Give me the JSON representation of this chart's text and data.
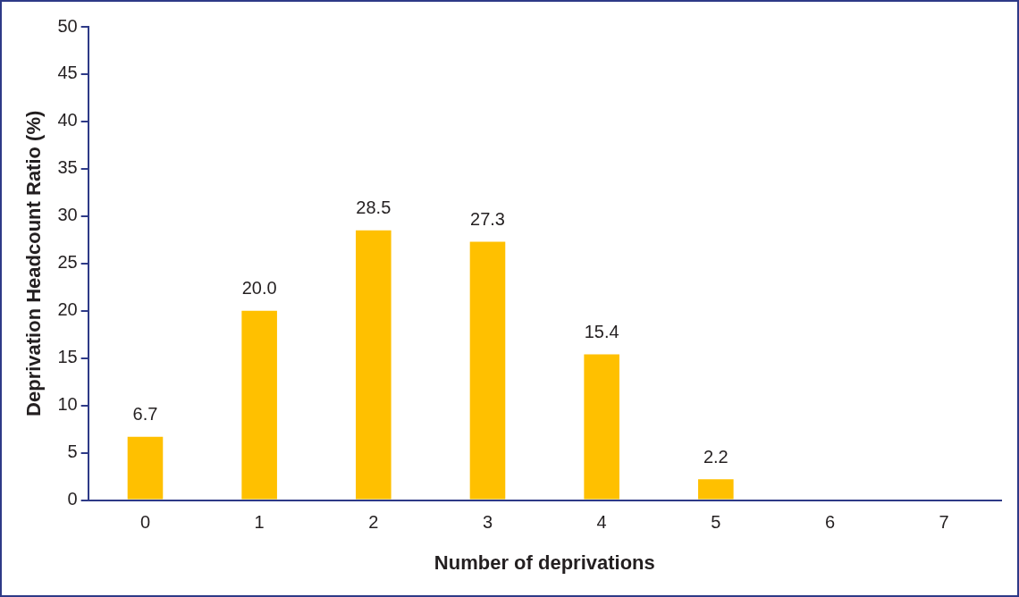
{
  "chart_data": {
    "type": "bar",
    "xlabel": "Number of deprivations",
    "ylabel": "Deprivation Headcount Ratio (%)",
    "categories": [
      "0",
      "1",
      "2",
      "3",
      "4",
      "5",
      "6",
      "7"
    ],
    "values": [
      6.7,
      20.0,
      28.5,
      27.3,
      15.4,
      2.2,
      null,
      null
    ],
    "value_labels": [
      "6.7",
      "20.0",
      "28.5",
      "27.3",
      "15.4",
      "2.2",
      null,
      null
    ],
    "color": "#ffc000",
    "ylim": [
      0,
      50
    ],
    "yticks": [
      0,
      5,
      10,
      15,
      20,
      25,
      30,
      35,
      40,
      45,
      50
    ]
  }
}
